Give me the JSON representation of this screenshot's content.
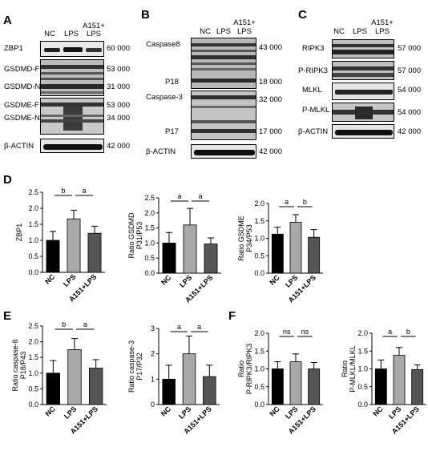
{
  "panels": {
    "A": "A",
    "B": "B",
    "C": "C",
    "D": "D",
    "E": "E",
    "F": "F"
  },
  "lane_labels": {
    "nc": "NC",
    "lps": "LPS",
    "a151_1": "A151+",
    "a151_2": "LPS"
  },
  "blots_A": [
    {
      "id": "a-zbp1",
      "label": "ZBP1",
      "mw": "60 000"
    },
    {
      "id": "a-gsdmdf",
      "label": "GSDMD-F",
      "mw": "53 000"
    },
    {
      "id": "a-gsdmdn",
      "label": "GSDMD-N",
      "mw": "31 000"
    },
    {
      "id": "a-gsdmef",
      "label": "GSDME-F",
      "mw": "53 000"
    },
    {
      "id": "a-gsdmen",
      "label": "GSDME-N",
      "mw": "34 000"
    },
    {
      "id": "a-actin",
      "label": "β-ACTIN",
      "mw": "42 000"
    }
  ],
  "blots_B": [
    {
      "id": "b-casp8",
      "label": "Caspase8",
      "mw": "43 000"
    },
    {
      "id": "b-p18",
      "label": "P18",
      "mw": "18 000"
    },
    {
      "id": "b-casp3",
      "label": "Caspase-3",
      "mw": "32 000"
    },
    {
      "id": "b-p17",
      "label": "P17",
      "mw": "17 000"
    },
    {
      "id": "b-actin",
      "label": "β-ACTIN",
      "mw": "42 000"
    }
  ],
  "blots_C": [
    {
      "id": "c-ripk3",
      "label": "RIPK3",
      "mw": "57 000"
    },
    {
      "id": "c-pripk3",
      "label": "P-RIPK3",
      "mw": "57 000"
    },
    {
      "id": "c-mlkl",
      "label": "MLKL",
      "mw": "54 000"
    },
    {
      "id": "c-pmlkl",
      "label": "P-MLKL",
      "mw": "54 000"
    },
    {
      "id": "c-actin",
      "label": "β-ACTIN",
      "mw": "42 000"
    }
  ],
  "chart_data": [
    {
      "id": "d1",
      "type": "bar",
      "ylabel": [
        "ZBP1"
      ],
      "categories": [
        "NC",
        "LPS",
        "A151+LPS"
      ],
      "values": [
        1.0,
        1.67,
        1.22
      ],
      "errors": [
        0.28,
        0.27,
        0.22
      ],
      "yticks": [
        0.0,
        0.5,
        1.0,
        1.5,
        2.0,
        2.5
      ],
      "ylim": [
        0,
        2.5
      ],
      "sig": [
        {
          "from": 0,
          "to": 1,
          "text": "b"
        },
        {
          "from": 1,
          "to": 2,
          "text": "a"
        }
      ]
    },
    {
      "id": "d2",
      "type": "bar",
      "ylabel": [
        "Ratio GSDMD",
        "P31/P53"
      ],
      "categories": [
        "NC",
        "LPS",
        "A151+LPS"
      ],
      "values": [
        1.0,
        1.6,
        0.97
      ],
      "errors": [
        0.35,
        0.55,
        0.2
      ],
      "yticks": [
        0.0,
        0.5,
        1.0,
        1.5,
        2.0,
        2.5
      ],
      "ylim": [
        0,
        2.5
      ],
      "sig": [
        {
          "from": 0,
          "to": 1,
          "text": "a"
        },
        {
          "from": 1,
          "to": 2,
          "text": "a"
        }
      ]
    },
    {
      "id": "d3",
      "type": "bar",
      "ylabel": [
        "Ratio GSDME",
        "P34/P53"
      ],
      "categories": [
        "NC",
        "LPS",
        "A151+LPS"
      ],
      "values": [
        1.12,
        1.46,
        1.03
      ],
      "errors": [
        0.2,
        0.22,
        0.22
      ],
      "yticks": [
        0.0,
        0.5,
        1.0,
        1.5,
        2.0
      ],
      "ylim": [
        0,
        2.0
      ],
      "sig": [
        {
          "from": 0,
          "to": 1,
          "text": "a"
        },
        {
          "from": 1,
          "to": 2,
          "text": "b"
        }
      ]
    },
    {
      "id": "e1",
      "type": "bar",
      "ylabel": [
        "Ratio caspase-8",
        "P18/P43"
      ],
      "categories": [
        "NC",
        "LPS",
        "A151+LPS"
      ],
      "values": [
        1.0,
        1.75,
        1.16
      ],
      "errors": [
        0.4,
        0.35,
        0.27
      ],
      "yticks": [
        0.0,
        0.5,
        1.0,
        1.5,
        2.0,
        2.5
      ],
      "ylim": [
        0,
        2.5
      ],
      "sig": [
        {
          "from": 0,
          "to": 1,
          "text": "b"
        },
        {
          "from": 1,
          "to": 2,
          "text": "a"
        }
      ]
    },
    {
      "id": "e2",
      "type": "bar",
      "ylabel": [
        "Ratio caspase-3",
        "P17/P32"
      ],
      "categories": [
        "NC",
        "LPS",
        "A151+LPS"
      ],
      "values": [
        1.0,
        2.0,
        1.1
      ],
      "errors": [
        0.55,
        0.7,
        0.45
      ],
      "yticks": [
        0,
        1,
        2,
        3
      ],
      "ylim": [
        0,
        3
      ],
      "sig": [
        {
          "from": 0,
          "to": 1,
          "text": "a"
        },
        {
          "from": 1,
          "to": 2,
          "text": "a"
        }
      ]
    },
    {
      "id": "f1",
      "type": "bar",
      "ylabel": [
        "Ratio",
        "P-RIPK3/RIPK3"
      ],
      "categories": [
        "NC",
        "LPS",
        "A151+LPS"
      ],
      "values": [
        1.0,
        1.2,
        1.0
      ],
      "errors": [
        0.2,
        0.22,
        0.18
      ],
      "yticks": [
        0.0,
        0.5,
        1.0,
        1.5,
        2.0
      ],
      "ylim": [
        0,
        2.0
      ],
      "sig": [
        {
          "from": 0,
          "to": 1,
          "text": "ns"
        },
        {
          "from": 1,
          "to": 2,
          "text": "ns"
        }
      ]
    },
    {
      "id": "f2",
      "type": "bar",
      "ylabel": [
        "Ratio",
        "P-MLKL/MLKL"
      ],
      "categories": [
        "NC",
        "LPS",
        "A151+LPS"
      ],
      "values": [
        1.0,
        1.38,
        0.98
      ],
      "errors": [
        0.25,
        0.22,
        0.13
      ],
      "yticks": [
        0.0,
        0.5,
        1.0,
        1.5,
        2.0
      ],
      "ylim": [
        0,
        2.0
      ],
      "sig": [
        {
          "from": 0,
          "to": 1,
          "text": "a"
        },
        {
          "from": 1,
          "to": 2,
          "text": "b"
        }
      ]
    }
  ]
}
